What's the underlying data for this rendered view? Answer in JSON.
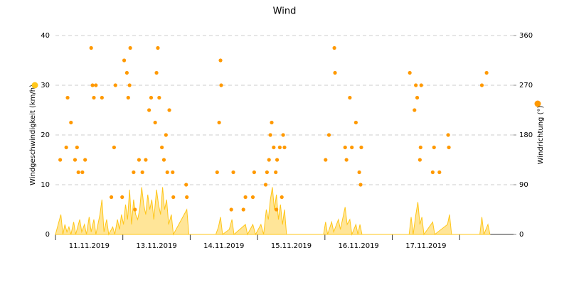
{
  "chart_data": {
    "type": "wind",
    "title": "Wind",
    "xlim": [
      0,
      6.8
    ],
    "xticks": [
      {
        "value": 0.5,
        "label": "11.11.2019"
      },
      {
        "value": 1.5,
        "label": "13.11.2019"
      },
      {
        "value": 2.5,
        "label": "14.11.2019"
      },
      {
        "value": 3.5,
        "label": "15.11.2019"
      },
      {
        "value": 4.5,
        "label": "16.11.2019"
      },
      {
        "value": 5.5,
        "label": "17.11.2019"
      }
    ],
    "ylim": [
      0,
      40
    ],
    "yticks": [
      0,
      10,
      20,
      30,
      40
    ],
    "y2lim": [
      0,
      360
    ],
    "y2ticks": [
      0,
      90,
      180,
      270,
      360
    ],
    "grid": true,
    "series": [
      {
        "name": "Windgeschwindigkeit (km/h)",
        "color": "#ffc61a",
        "type": "area",
        "x": [
          0.0,
          0.08,
          0.11,
          0.14,
          0.17,
          0.2,
          0.23,
          0.27,
          0.3,
          0.36,
          0.39,
          0.43,
          0.46,
          0.5,
          0.53,
          0.57,
          0.6,
          0.66,
          0.69,
          0.72,
          0.76,
          0.79,
          0.85,
          0.88,
          0.92,
          0.95,
          0.98,
          1.01,
          1.04,
          1.07,
          1.1,
          1.13,
          1.16,
          1.19,
          1.22,
          1.25,
          1.28,
          1.31,
          1.34,
          1.37,
          1.4,
          1.43,
          1.46,
          1.5,
          1.53,
          1.56,
          1.59,
          1.62,
          1.65,
          1.68,
          1.72,
          1.75,
          1.95,
          1.98,
          2.38,
          2.42,
          2.45,
          2.48,
          2.58,
          2.62,
          2.65,
          2.82,
          2.85,
          2.93,
          2.97,
          3.05,
          3.09,
          3.13,
          3.16,
          3.19,
          3.22,
          3.25,
          3.28,
          3.31,
          3.34,
          3.37,
          3.4,
          3.43,
          3.98,
          4.01,
          4.04,
          4.1,
          4.13,
          4.2,
          4.23,
          4.3,
          4.33,
          4.37,
          4.4,
          4.46,
          4.49,
          4.52,
          4.55,
          5.25,
          5.28,
          5.31,
          5.35,
          5.38,
          5.41,
          5.44,
          5.47,
          5.6,
          5.63,
          5.82,
          5.85,
          5.88,
          6.3,
          6.33,
          6.36,
          6.42,
          6.45
        ],
        "values": [
          0,
          4,
          0,
          2,
          0.5,
          1.5,
          0,
          2.5,
          0,
          3,
          0.5,
          2,
          0,
          3.5,
          0.5,
          3,
          0,
          4,
          7,
          0.5,
          3,
          0,
          1.5,
          0,
          3,
          1,
          4,
          2,
          6,
          3,
          9,
          2,
          7,
          4,
          3,
          5,
          9.5,
          6,
          4,
          8,
          5,
          7,
          3,
          9,
          6,
          4,
          9.5,
          5,
          7,
          2,
          4,
          0,
          5,
          0,
          0,
          1.5,
          3.5,
          0,
          1,
          3,
          0,
          2,
          0,
          2,
          0,
          2,
          0,
          5,
          3,
          7,
          9.5,
          5,
          8,
          3,
          6,
          2,
          5,
          0,
          0,
          2.5,
          0,
          2.5,
          0.5,
          3,
          1,
          5.5,
          2,
          3,
          0,
          2,
          0,
          2,
          0,
          0,
          3.5,
          0,
          4,
          6.5,
          2,
          3.5,
          0,
          2.5,
          0,
          2,
          4,
          0,
          0,
          3.5,
          0,
          2,
          0
        ]
      },
      {
        "name": "Windrichtung (°)",
        "color": "#ff9900",
        "type": "scatter",
        "axis": "y2",
        "x": [
          0.07,
          0.16,
          0.18,
          0.23,
          0.29,
          0.32,
          0.34,
          0.4,
          0.44,
          0.53,
          0.55,
          0.57,
          0.6,
          0.69,
          0.83,
          0.87,
          0.89,
          0.99,
          1.02,
          1.06,
          1.08,
          1.1,
          1.11,
          1.16,
          1.18,
          1.24,
          1.29,
          1.34,
          1.39,
          1.42,
          1.48,
          1.5,
          1.52,
          1.54,
          1.58,
          1.61,
          1.64,
          1.66,
          1.69,
          1.74,
          1.75,
          1.94,
          1.95,
          2.4,
          2.45,
          2.46,
          2.43,
          2.61,
          2.64,
          2.79,
          2.82,
          2.95,
          2.93,
          3.12,
          3.14,
          3.17,
          3.19,
          3.21,
          3.24,
          3.27,
          3.29,
          3.33,
          3.36,
          3.38,
          3.4,
          3.28,
          4.01,
          4.06,
          4.14,
          4.15,
          4.3,
          4.32,
          4.37,
          4.4,
          4.46,
          4.51,
          4.53,
          4.54,
          5.26,
          5.33,
          5.35,
          5.37,
          5.41,
          5.42,
          5.43,
          5.6,
          5.62,
          5.7,
          5.83,
          5.84,
          6.33,
          6.4
        ],
        "values": [
          135,
          157.5,
          247.5,
          202.5,
          135,
          157.5,
          112.5,
          112.5,
          135,
          337.5,
          270,
          247.5,
          270,
          247.5,
          67.5,
          157.5,
          270,
          67.5,
          315,
          292.5,
          247.5,
          270,
          337.5,
          112.5,
          45,
          135,
          112.5,
          135,
          225,
          247.5,
          202.5,
          292.5,
          337.5,
          247.5,
          157.5,
          135,
          180,
          112.5,
          225,
          112.5,
          67.5,
          90,
          67.5,
          112.5,
          315,
          270,
          202.5,
          45,
          112.5,
          45,
          67.5,
          112.5,
          67.5,
          90,
          112.5,
          135,
          180,
          202.5,
          157.5,
          112.5,
          135,
          157.5,
          67.5,
          180,
          157.5,
          45,
          135,
          180,
          337.5,
          292.5,
          157.5,
          135,
          247.5,
          157.5,
          202.5,
          112.5,
          90,
          157.5,
          292.5,
          225,
          270,
          247.5,
          135,
          157.5,
          270,
          112.5,
          157.5,
          112.5,
          180,
          157.5,
          270,
          292.5
        ]
      }
    ]
  }
}
